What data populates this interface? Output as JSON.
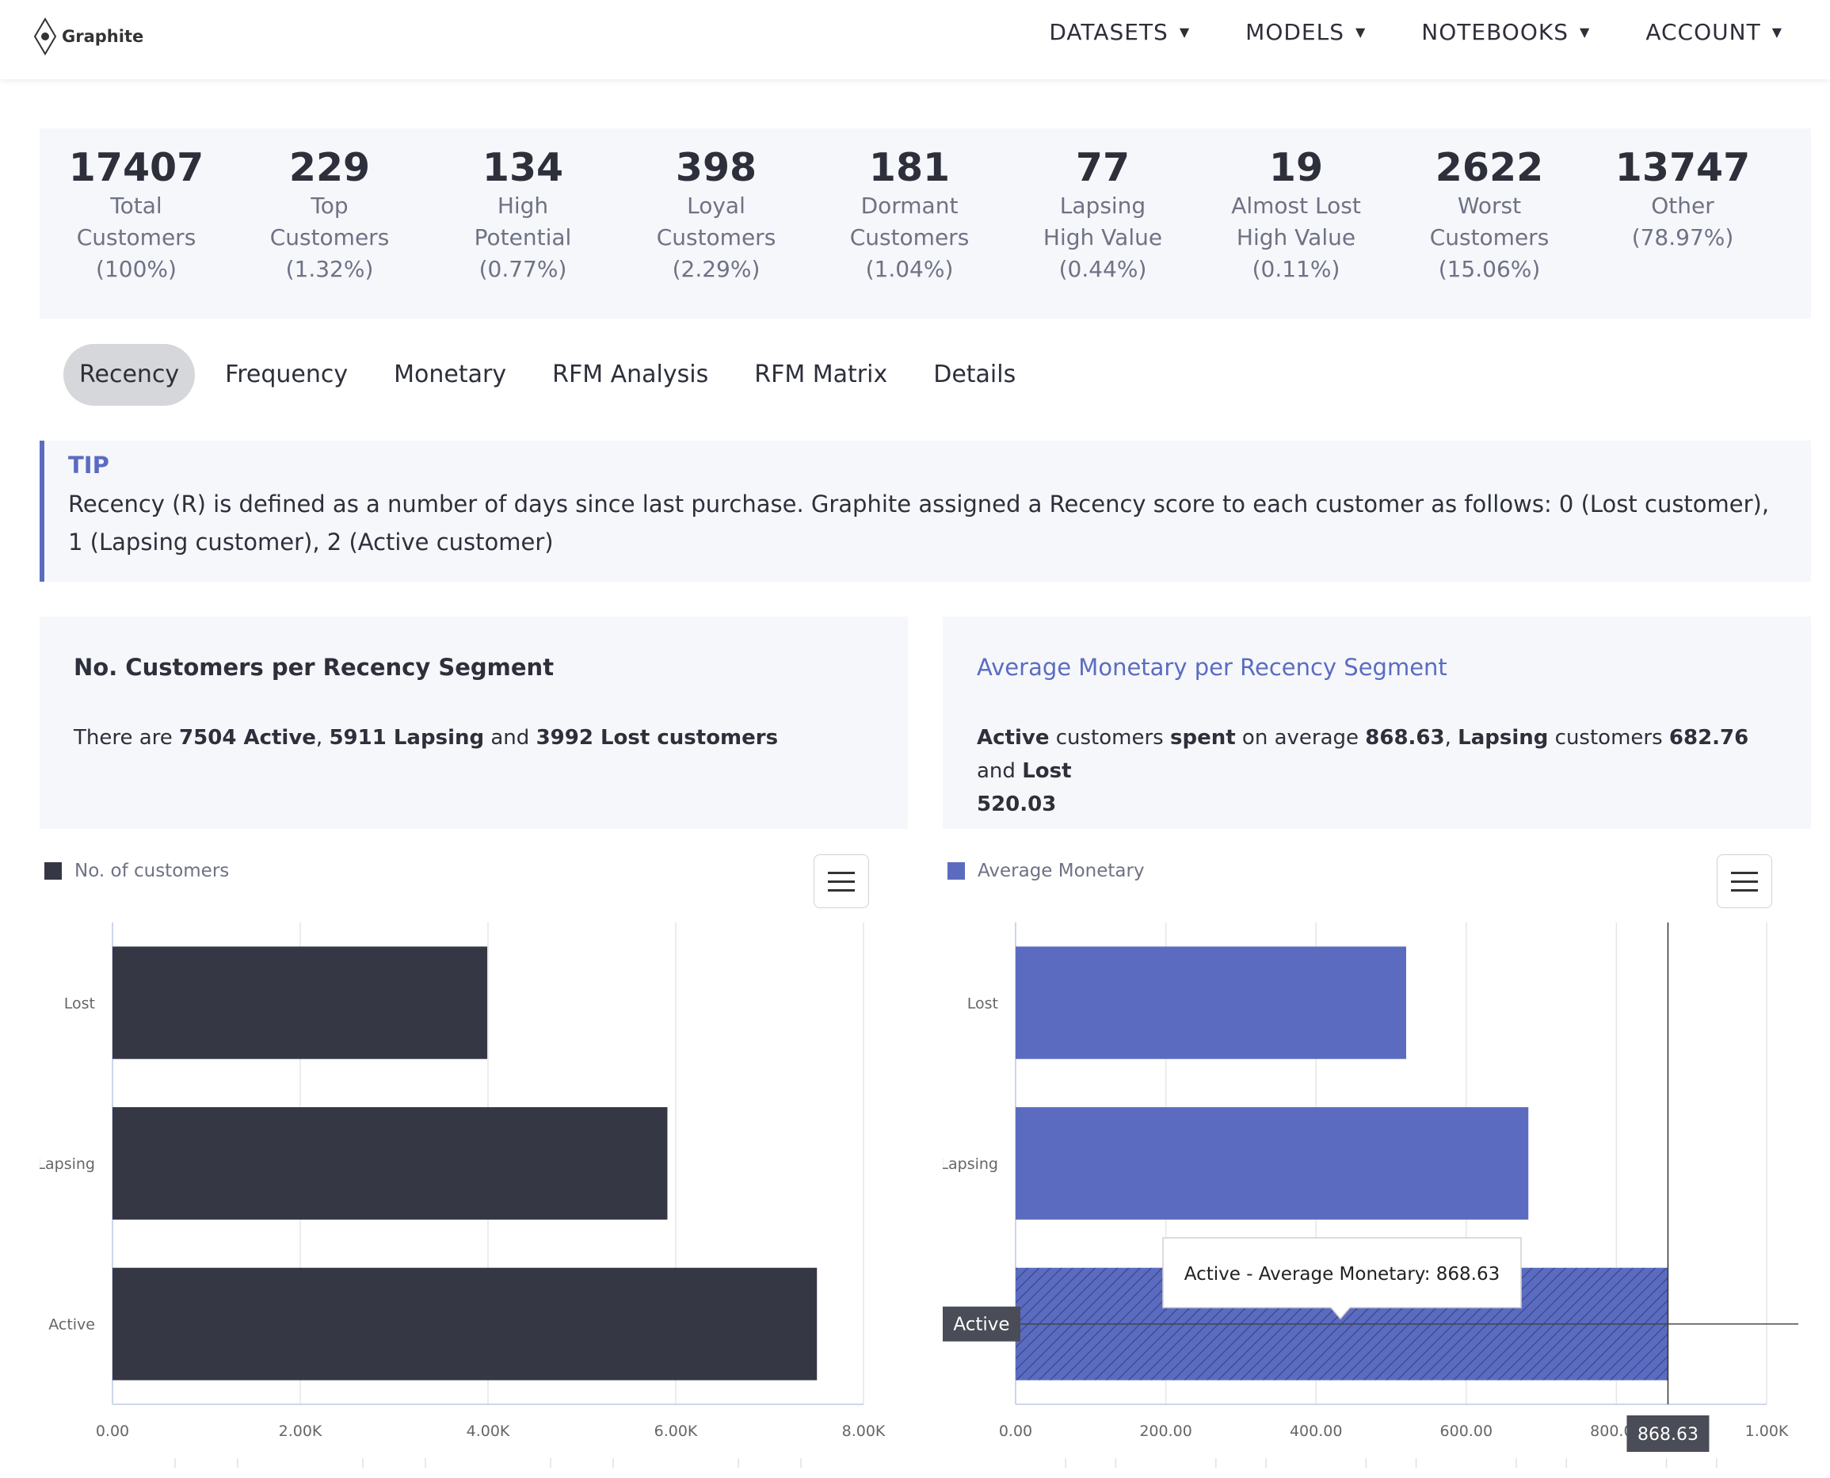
{
  "header": {
    "logo_text": "Graphite",
    "nav": [
      {
        "label": "DATASETS"
      },
      {
        "label": "MODELS"
      },
      {
        "label": "NOTEBOOKS"
      },
      {
        "label": "ACCOUNT"
      }
    ],
    "caret": "▼"
  },
  "stats": [
    {
      "value": "17407",
      "lines": [
        "Total",
        "Customers",
        "(100%)"
      ]
    },
    {
      "value": "229",
      "lines": [
        "Top",
        "Customers",
        "(1.32%)"
      ]
    },
    {
      "value": "134",
      "lines": [
        "High",
        "Potential",
        "(0.77%)"
      ]
    },
    {
      "value": "398",
      "lines": [
        "Loyal",
        "Customers",
        "(2.29%)"
      ]
    },
    {
      "value": "181",
      "lines": [
        "Dormant",
        "Customers",
        "(1.04%)"
      ]
    },
    {
      "value": "77",
      "lines": [
        "Lapsing",
        "High Value",
        "(0.44%)"
      ]
    },
    {
      "value": "19",
      "lines": [
        "Almost Lost",
        "High Value",
        "(0.11%)"
      ]
    },
    {
      "value": "2622",
      "lines": [
        "Worst",
        "Customers",
        "(15.06%)"
      ]
    },
    {
      "value": "13747",
      "lines": [
        "Other",
        "(78.97%)"
      ]
    }
  ],
  "tabs": [
    {
      "label": "Recency",
      "active": true
    },
    {
      "label": "Frequency",
      "active": false
    },
    {
      "label": "Monetary",
      "active": false
    },
    {
      "label": "RFM Analysis",
      "active": false
    },
    {
      "label": "RFM Matrix",
      "active": false
    },
    {
      "label": "Details",
      "active": false
    }
  ],
  "tip": {
    "title": "TIP",
    "text": "Recency (R) is defined as a number of days since last purchase. Graphite assigned a Recency score to each customer as follows: 0 (Lost customer), 1 (Lapsing customer), 2 (Active customer)"
  },
  "panels": {
    "customers": {
      "title": "No. Customers per Recency Segment",
      "t1": "There are ",
      "active": "7504 Active",
      "t2": ", ",
      "lapsing": "5911 Lapsing",
      "t3": " and ",
      "lost": "3992 Lost customers"
    },
    "monetary": {
      "title": "Average Monetary per Recency Segment",
      "active": "Active",
      "t1": " customers ",
      "spent": "spent",
      "t2": " on average ",
      "v_active": "868.63",
      "t3": ", ",
      "lapsing": "Lapsing",
      "t4": " customers ",
      "v_lapsing": "682.76",
      "t5": " and ",
      "lost": "Lost",
      "v_lost": "520.03"
    }
  },
  "colors": {
    "dark_bar": "#353744",
    "blue_bar": "#5b6cc0",
    "accent": "#5b6cc0"
  },
  "chart_data": [
    {
      "type": "bar",
      "orientation": "horizontal",
      "legend": "No. of customers",
      "categories": [
        "Lost",
        "Lapsing",
        "Active"
      ],
      "values": [
        3992,
        5911,
        7504
      ],
      "xlim": [
        0,
        8000
      ],
      "xticks": [
        0,
        2000,
        4000,
        6000,
        8000
      ],
      "xtick_labels": [
        "0.00",
        "2.00K",
        "4.00K",
        "6.00K",
        "8.00K"
      ],
      "grid": true
    },
    {
      "type": "bar",
      "orientation": "horizontal",
      "legend": "Average Monetary",
      "categories": [
        "Lost",
        "Lapsing",
        "Active"
      ],
      "values": [
        520.03,
        682.76,
        868.63
      ],
      "xlim": [
        0,
        1000
      ],
      "xticks": [
        0,
        200,
        400,
        600,
        800,
        1000
      ],
      "xtick_labels": [
        "0.00",
        "200.00",
        "400.00",
        "600.00",
        "800.00",
        "1.00K"
      ],
      "grid": true,
      "tooltip": "Active - Average Monetary: 868.63",
      "crosshair_y_label": "Active",
      "crosshair_x_label": "868.63",
      "highlighted_category": "Active"
    }
  ]
}
